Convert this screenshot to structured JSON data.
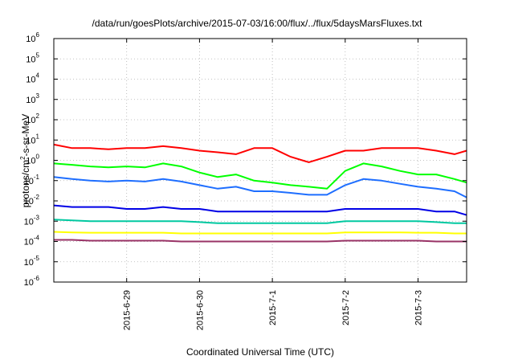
{
  "chart_data": {
    "type": "line",
    "title": "/data/run/goesPlots/archive/2015-07-03/16:00/flux/../flux/5daysMarsFluxes.txt",
    "xlabel": "Coordinated Universal Time (UTC)",
    "ylabel": "protons/cm²-s-sr-MeV",
    "yscale": "log",
    "ylim": [
      1e-06,
      1000000.0
    ],
    "xlim": [
      "2015-06-28 00:00",
      "2015-07-03 16:00"
    ],
    "x_ticks": [
      "2015-6-29",
      "2015-6-30",
      "2015-7-1",
      "2015-7-2",
      "2015-7-3"
    ],
    "y_ticks": [
      {
        "base": "10",
        "exp": "-6"
      },
      {
        "base": "10",
        "exp": "-5"
      },
      {
        "base": "10",
        "exp": "-4"
      },
      {
        "base": "10",
        "exp": "-3"
      },
      {
        "base": "10",
        "exp": "-2"
      },
      {
        "base": "10",
        "exp": "-1"
      },
      {
        "base": "10",
        "exp": "0"
      },
      {
        "base": "10",
        "exp": "1"
      },
      {
        "base": "10",
        "exp": "2"
      },
      {
        "base": "10",
        "exp": "3"
      },
      {
        "base": "10",
        "exp": "4"
      },
      {
        "base": "10",
        "exp": "5"
      },
      {
        "base": "10",
        "exp": "6"
      }
    ],
    "grid": true,
    "series": [
      {
        "color": "#ff0000",
        "values": [
          [
            "2015-06-28 00:00",
            6
          ],
          [
            "2015-06-28 06:00",
            4
          ],
          [
            "2015-06-28 12:00",
            4
          ],
          [
            "2015-06-28 18:00",
            3.5
          ],
          [
            "2015-06-29 00:00",
            4
          ],
          [
            "2015-06-29 06:00",
            4
          ],
          [
            "2015-06-29 12:00",
            5
          ],
          [
            "2015-06-29 18:00",
            4
          ],
          [
            "2015-06-30 00:00",
            3
          ],
          [
            "2015-06-30 06:00",
            2.5
          ],
          [
            "2015-06-30 12:00",
            2
          ],
          [
            "2015-06-30 18:00",
            4
          ],
          [
            "2015-07-01 00:00",
            4
          ],
          [
            "2015-07-01 06:00",
            1.5
          ],
          [
            "2015-07-01 12:00",
            0.8
          ],
          [
            "2015-07-01 18:00",
            1.5
          ],
          [
            "2015-07-02 00:00",
            3
          ],
          [
            "2015-07-02 06:00",
            3
          ],
          [
            "2015-07-02 12:00",
            4
          ],
          [
            "2015-07-02 18:00",
            4
          ],
          [
            "2015-07-03 00:00",
            4
          ],
          [
            "2015-07-03 06:00",
            3
          ],
          [
            "2015-07-03 12:00",
            2
          ],
          [
            "2015-07-03 16:00",
            3
          ]
        ]
      },
      {
        "color": "#00ff00",
        "values": [
          [
            "2015-06-28 00:00",
            0.7
          ],
          [
            "2015-06-28 06:00",
            0.6
          ],
          [
            "2015-06-28 12:00",
            0.5
          ],
          [
            "2015-06-28 18:00",
            0.45
          ],
          [
            "2015-06-29 00:00",
            0.5
          ],
          [
            "2015-06-29 06:00",
            0.45
          ],
          [
            "2015-06-29 12:00",
            0.7
          ],
          [
            "2015-06-29 18:00",
            0.5
          ],
          [
            "2015-06-30 00:00",
            0.25
          ],
          [
            "2015-06-30 06:00",
            0.15
          ],
          [
            "2015-06-30 12:00",
            0.2
          ],
          [
            "2015-06-30 18:00",
            0.1
          ],
          [
            "2015-07-01 00:00",
            0.08
          ],
          [
            "2015-07-01 06:00",
            0.06
          ],
          [
            "2015-07-01 12:00",
            0.05
          ],
          [
            "2015-07-01 18:00",
            0.04
          ],
          [
            "2015-07-02 00:00",
            0.3
          ],
          [
            "2015-07-02 06:00",
            0.7
          ],
          [
            "2015-07-02 12:00",
            0.5
          ],
          [
            "2015-07-02 18:00",
            0.3
          ],
          [
            "2015-07-03 00:00",
            0.2
          ],
          [
            "2015-07-03 06:00",
            0.2
          ],
          [
            "2015-07-03 12:00",
            0.12
          ],
          [
            "2015-07-03 16:00",
            0.08
          ]
        ]
      },
      {
        "color": "#1e6eff",
        "values": [
          [
            "2015-06-28 00:00",
            0.15
          ],
          [
            "2015-06-28 06:00",
            0.12
          ],
          [
            "2015-06-28 12:00",
            0.1
          ],
          [
            "2015-06-28 18:00",
            0.09
          ],
          [
            "2015-06-29 00:00",
            0.1
          ],
          [
            "2015-06-29 06:00",
            0.09
          ],
          [
            "2015-06-29 12:00",
            0.12
          ],
          [
            "2015-06-29 18:00",
            0.09
          ],
          [
            "2015-06-30 00:00",
            0.06
          ],
          [
            "2015-06-30 06:00",
            0.04
          ],
          [
            "2015-06-30 12:00",
            0.05
          ],
          [
            "2015-06-30 18:00",
            0.03
          ],
          [
            "2015-07-01 00:00",
            0.03
          ],
          [
            "2015-07-01 06:00",
            0.025
          ],
          [
            "2015-07-01 12:00",
            0.02
          ],
          [
            "2015-07-01 18:00",
            0.02
          ],
          [
            "2015-07-02 00:00",
            0.06
          ],
          [
            "2015-07-02 06:00",
            0.12
          ],
          [
            "2015-07-02 12:00",
            0.1
          ],
          [
            "2015-07-02 18:00",
            0.07
          ],
          [
            "2015-07-03 00:00",
            0.05
          ],
          [
            "2015-07-03 06:00",
            0.04
          ],
          [
            "2015-07-03 12:00",
            0.03
          ],
          [
            "2015-07-03 16:00",
            0.015
          ]
        ]
      },
      {
        "color": "#0000e6",
        "values": [
          [
            "2015-06-28 00:00",
            0.006
          ],
          [
            "2015-06-28 06:00",
            0.005
          ],
          [
            "2015-06-28 12:00",
            0.005
          ],
          [
            "2015-06-28 18:00",
            0.005
          ],
          [
            "2015-06-29 00:00",
            0.004
          ],
          [
            "2015-06-29 06:00",
            0.004
          ],
          [
            "2015-06-29 12:00",
            0.005
          ],
          [
            "2015-06-29 18:00",
            0.004
          ],
          [
            "2015-06-30 00:00",
            0.004
          ],
          [
            "2015-06-30 06:00",
            0.003
          ],
          [
            "2015-06-30 12:00",
            0.003
          ],
          [
            "2015-06-30 18:00",
            0.003
          ],
          [
            "2015-07-01 00:00",
            0.003
          ],
          [
            "2015-07-01 06:00",
            0.003
          ],
          [
            "2015-07-01 12:00",
            0.003
          ],
          [
            "2015-07-01 18:00",
            0.003
          ],
          [
            "2015-07-02 00:00",
            0.004
          ],
          [
            "2015-07-02 06:00",
            0.004
          ],
          [
            "2015-07-02 12:00",
            0.004
          ],
          [
            "2015-07-02 18:00",
            0.004
          ],
          [
            "2015-07-03 00:00",
            0.004
          ],
          [
            "2015-07-03 06:00",
            0.003
          ],
          [
            "2015-07-03 12:00",
            0.003
          ],
          [
            "2015-07-03 16:00",
            0.002
          ]
        ]
      },
      {
        "color": "#00c8a0",
        "values": [
          [
            "2015-06-28 00:00",
            0.0012
          ],
          [
            "2015-06-28 06:00",
            0.0011
          ],
          [
            "2015-06-28 12:00",
            0.001
          ],
          [
            "2015-06-28 18:00",
            0.001
          ],
          [
            "2015-06-29 00:00",
            0.001
          ],
          [
            "2015-06-29 06:00",
            0.001
          ],
          [
            "2015-06-29 12:00",
            0.001
          ],
          [
            "2015-06-29 18:00",
            0.001
          ],
          [
            "2015-06-30 00:00",
            0.0009
          ],
          [
            "2015-06-30 06:00",
            0.0008
          ],
          [
            "2015-06-30 12:00",
            0.0008
          ],
          [
            "2015-06-30 18:00",
            0.0008
          ],
          [
            "2015-07-01 00:00",
            0.0008
          ],
          [
            "2015-07-01 06:00",
            0.0008
          ],
          [
            "2015-07-01 12:00",
            0.0008
          ],
          [
            "2015-07-01 18:00",
            0.0008
          ],
          [
            "2015-07-02 00:00",
            0.001
          ],
          [
            "2015-07-02 06:00",
            0.001
          ],
          [
            "2015-07-02 12:00",
            0.001
          ],
          [
            "2015-07-02 18:00",
            0.001
          ],
          [
            "2015-07-03 00:00",
            0.001
          ],
          [
            "2015-07-03 06:00",
            0.0009
          ],
          [
            "2015-07-03 12:00",
            0.0008
          ],
          [
            "2015-07-03 16:00",
            0.0008
          ]
        ]
      },
      {
        "color": "#ffff00",
        "values": [
          [
            "2015-06-28 00:00",
            0.0003
          ],
          [
            "2015-06-28 06:00",
            0.00028
          ],
          [
            "2015-06-28 12:00",
            0.00027
          ],
          [
            "2015-06-28 18:00",
            0.00027
          ],
          [
            "2015-06-29 00:00",
            0.00027
          ],
          [
            "2015-06-29 06:00",
            0.00027
          ],
          [
            "2015-06-29 12:00",
            0.00027
          ],
          [
            "2015-06-29 18:00",
            0.00025
          ],
          [
            "2015-06-30 00:00",
            0.00025
          ],
          [
            "2015-06-30 06:00",
            0.00025
          ],
          [
            "2015-06-30 12:00",
            0.00025
          ],
          [
            "2015-06-30 18:00",
            0.00025
          ],
          [
            "2015-07-01 00:00",
            0.00025
          ],
          [
            "2015-07-01 06:00",
            0.00025
          ],
          [
            "2015-07-01 12:00",
            0.00025
          ],
          [
            "2015-07-01 18:00",
            0.00025
          ],
          [
            "2015-07-02 00:00",
            0.00028
          ],
          [
            "2015-07-02 06:00",
            0.00028
          ],
          [
            "2015-07-02 12:00",
            0.00028
          ],
          [
            "2015-07-02 18:00",
            0.00028
          ],
          [
            "2015-07-03 00:00",
            0.00027
          ],
          [
            "2015-07-03 06:00",
            0.00027
          ],
          [
            "2015-07-03 12:00",
            0.00025
          ],
          [
            "2015-07-03 16:00",
            0.00025
          ]
        ]
      },
      {
        "color": "#993366",
        "values": [
          [
            "2015-06-28 00:00",
            0.00012
          ],
          [
            "2015-06-28 06:00",
            0.00012
          ],
          [
            "2015-06-28 12:00",
            0.00011
          ],
          [
            "2015-06-28 18:00",
            0.00011
          ],
          [
            "2015-06-29 00:00",
            0.00011
          ],
          [
            "2015-06-29 06:00",
            0.00011
          ],
          [
            "2015-06-29 12:00",
            0.00011
          ],
          [
            "2015-06-29 18:00",
            0.0001
          ],
          [
            "2015-06-30 00:00",
            0.0001
          ],
          [
            "2015-06-30 06:00",
            0.0001
          ],
          [
            "2015-06-30 12:00",
            0.0001
          ],
          [
            "2015-06-30 18:00",
            0.0001
          ],
          [
            "2015-07-01 00:00",
            0.0001
          ],
          [
            "2015-07-01 06:00",
            0.0001
          ],
          [
            "2015-07-01 12:00",
            0.0001
          ],
          [
            "2015-07-01 18:00",
            0.0001
          ],
          [
            "2015-07-02 00:00",
            0.00011
          ],
          [
            "2015-07-02 06:00",
            0.00011
          ],
          [
            "2015-07-02 12:00",
            0.00011
          ],
          [
            "2015-07-02 18:00",
            0.00011
          ],
          [
            "2015-07-03 00:00",
            0.00011
          ],
          [
            "2015-07-03 06:00",
            0.0001
          ],
          [
            "2015-07-03 12:00",
            0.0001
          ],
          [
            "2015-07-03 16:00",
            0.0001
          ]
        ]
      }
    ]
  }
}
